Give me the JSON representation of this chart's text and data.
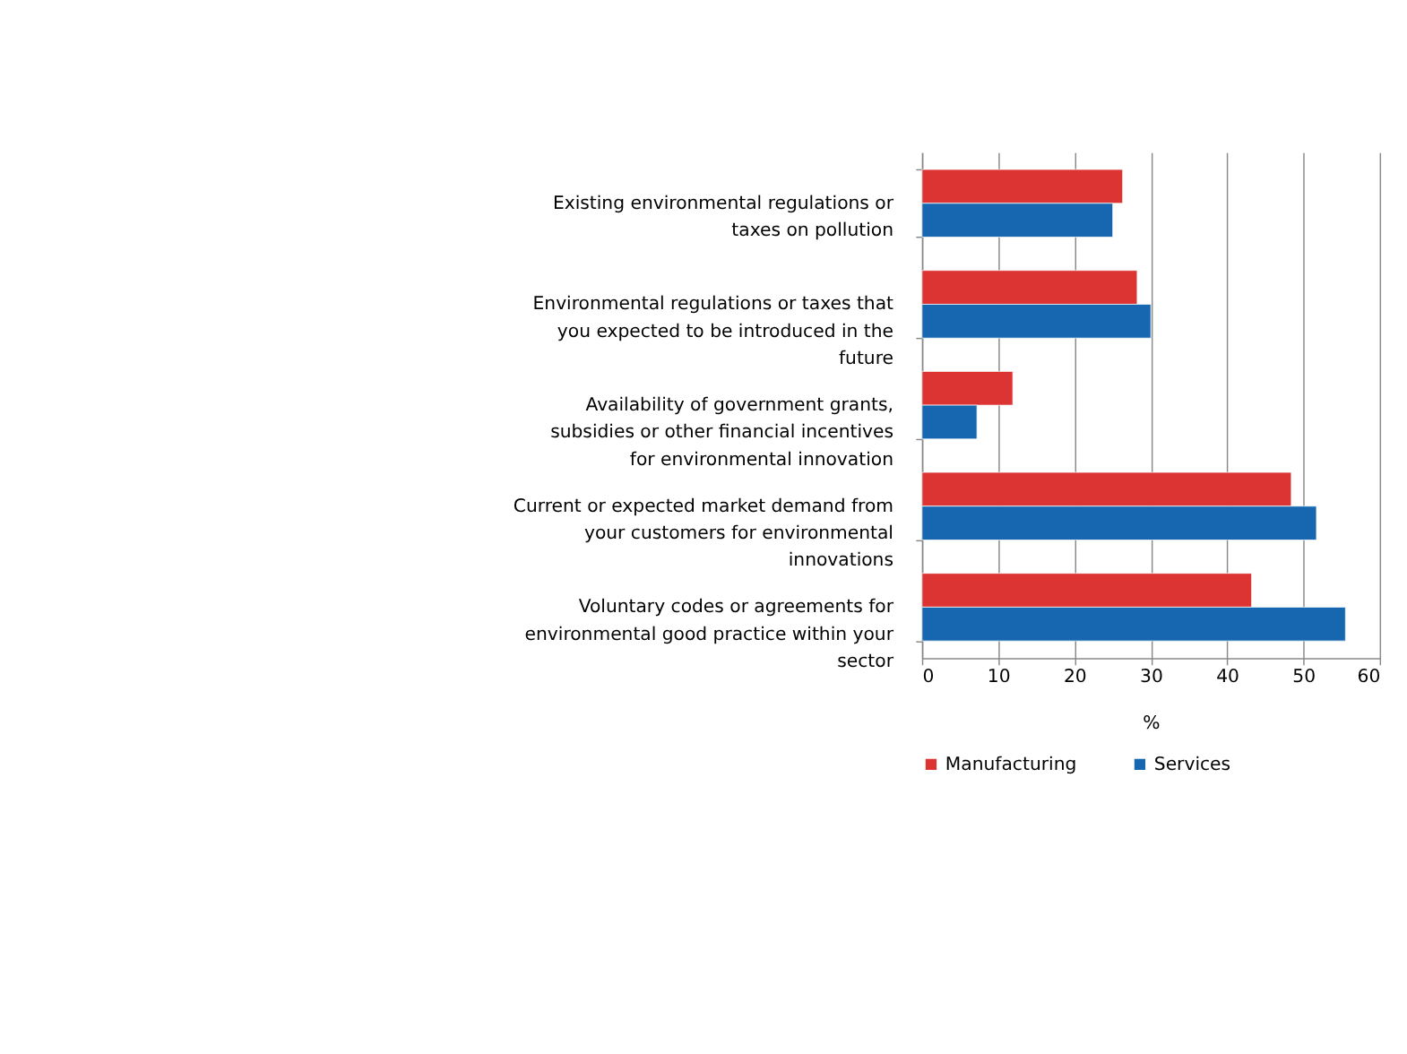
{
  "chart_data": {
    "type": "bar",
    "orientation": "horizontal",
    "xlabel": "%",
    "categories": [
      "Existing environmental regulations or taxes on pollution",
      "Environmental regulations or taxes that you expected to be introduced in the future",
      "Availability of government grants, subsidies or other financial incentives for environmental innovation",
      "Current or expected market demand from your customers for environmental innovations",
      "Voluntary codes or agreements for environmental good practice within your sector"
    ],
    "series": [
      {
        "name": "Manufacturing",
        "color": "#dc3333",
        "values": [
          26.3,
          28.2,
          11.9,
          48.4,
          43.2
        ]
      },
      {
        "name": "Services",
        "color": "#1667b0",
        "values": [
          25.0,
          30.0,
          7.2,
          51.7,
          55.5
        ]
      }
    ],
    "xlim": [
      0,
      60
    ],
    "xticks": [
      0,
      10,
      20,
      30,
      40,
      50,
      60
    ],
    "grid": "x",
    "legend": "bottom"
  }
}
